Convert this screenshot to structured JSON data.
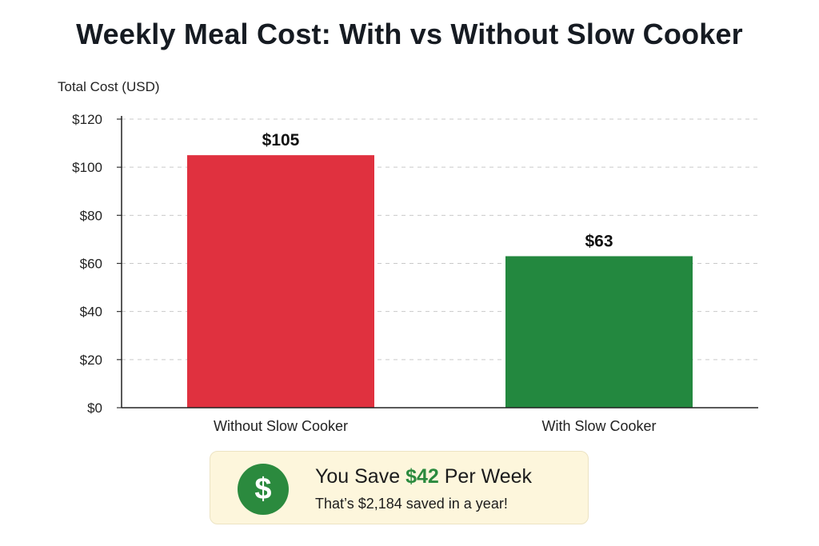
{
  "chart_data": {
    "type": "bar",
    "title": "Weekly Meal Cost: With vs Without Slow Cooker",
    "ylabel": "Total Cost (USD)",
    "xlabel": "",
    "categories": [
      "Without Slow Cooker",
      "With Slow Cooker"
    ],
    "values": [
      105,
      63
    ],
    "value_labels": [
      "$105",
      "$63"
    ],
    "colors": [
      "#e0313f",
      "#23883f"
    ],
    "ylim": [
      0,
      120
    ],
    "yticks": [
      0,
      20,
      40,
      60,
      80,
      100,
      120
    ],
    "ytick_labels": [
      "$0",
      "$20",
      "$40",
      "$60",
      "$80",
      "$100",
      "$120"
    ],
    "grid": "horizontal dashed",
    "legend": "none"
  },
  "savings_box": {
    "icon": "dollar-icon",
    "icon_glyph": "$",
    "prefix": "You Save",
    "amount": "$42",
    "suffix": "Per Week",
    "subtext": "That’s $2,184 saved in a year!",
    "accent_color": "#2b8a3e"
  }
}
